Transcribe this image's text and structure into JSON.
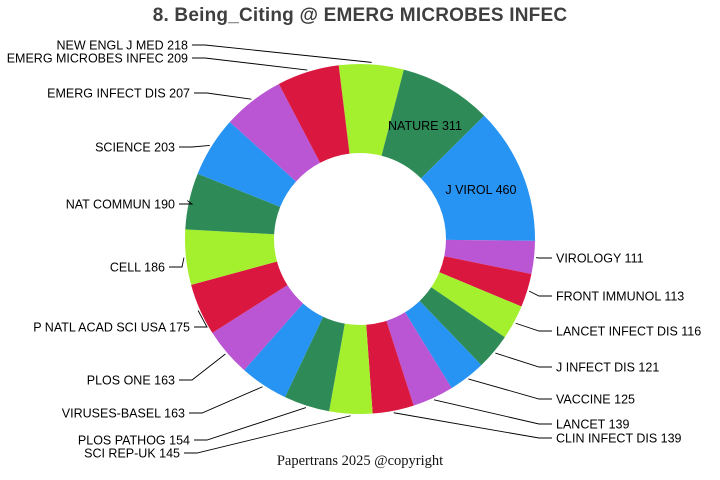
{
  "title": "8. Being_Citing @ EMERG MICROBES INFEC",
  "footer": {
    "caption": "Papertrans 2025 @copyright"
  },
  "chart_data": {
    "type": "pie",
    "subtype": "donut",
    "direction": "clockwise",
    "start_angle_deg_from_top": 353,
    "legend_position": "none",
    "label_format": "{label} {value}",
    "palette": [
      "#a4f02e",
      "#2e8b57",
      "#2793f3",
      "#ba55d3",
      "#d9173f"
    ],
    "slices": [
      {
        "label": "NEW ENGL J MED",
        "value": 218
      },
      {
        "label": "NATURE",
        "value": 311
      },
      {
        "label": "J VIROL",
        "value": 460
      },
      {
        "label": "VIROLOGY",
        "value": 111
      },
      {
        "label": "FRONT IMMUNOL",
        "value": 113
      },
      {
        "label": "LANCET INFECT DIS",
        "value": 116
      },
      {
        "label": "J INFECT DIS",
        "value": 121
      },
      {
        "label": "VACCINE",
        "value": 125
      },
      {
        "label": "LANCET",
        "value": 139
      },
      {
        "label": "CLIN INFECT DIS",
        "value": 139
      },
      {
        "label": "SCI REP-UK",
        "value": 145
      },
      {
        "label": "PLOS PATHOG",
        "value": 154
      },
      {
        "label": "VIRUSES-BASEL",
        "value": 163
      },
      {
        "label": "PLOS ONE",
        "value": 163
      },
      {
        "label": "P NATL ACAD SCI USA",
        "value": 175
      },
      {
        "label": "CELL",
        "value": 186
      },
      {
        "label": "NAT COMMUN",
        "value": 190
      },
      {
        "label": "SCIENCE",
        "value": 203
      },
      {
        "label": "EMERG INFECT DIS",
        "value": 207
      },
      {
        "label": "EMERG MICROBES INFEC",
        "value": 209
      }
    ]
  }
}
